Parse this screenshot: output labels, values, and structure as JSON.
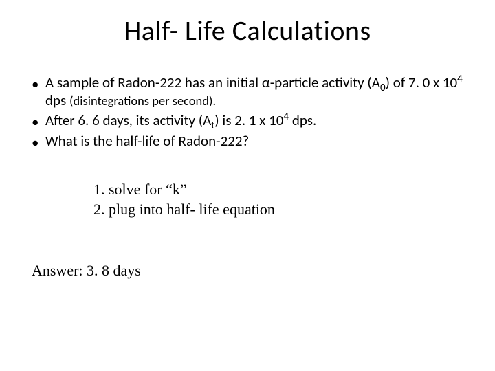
{
  "title": "Half- Life Calculations",
  "bullets": {
    "b1": {
      "pre": "A sample of Radon-222 has an initial α-particle activity (A",
      "sub1": "0",
      "mid1": ") of 7. 0 x 10",
      "sup1": "4",
      "mid2": " dps ",
      "small1": "(disintegrations per second).",
      "end": ""
    },
    "b2": {
      "pre": "After 6. 6 days, its activity (A",
      "sub1": "t",
      "mid1": ") is 2. 1 x 10",
      "sup1": "4",
      "end": " dps."
    },
    "b3": {
      "text": "What is the half-life of Radon-222?"
    }
  },
  "steps": {
    "s1": "1.  solve for “k”",
    "s2": "2.  plug into half- life equation"
  },
  "answer": "Answer: 3. 8 days",
  "colors": {
    "background": "#ffffff",
    "text": "#000000"
  },
  "fonts": {
    "title_size": 40,
    "body_size": 21,
    "serif_size": 22
  }
}
